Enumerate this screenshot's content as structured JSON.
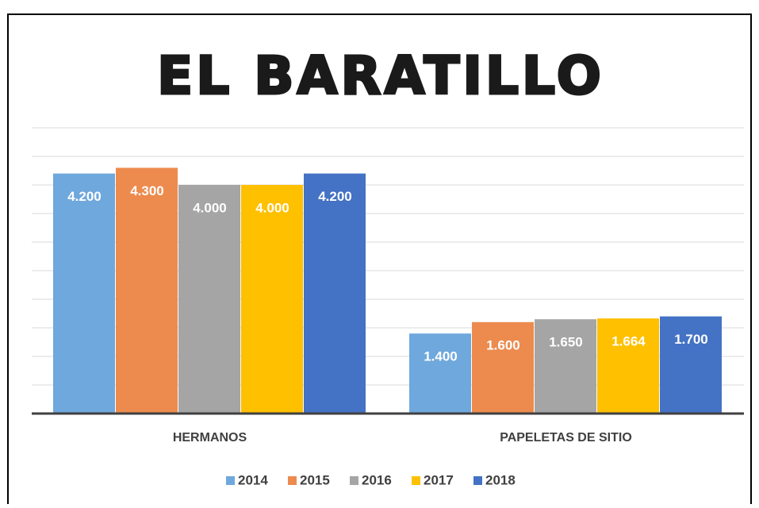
{
  "chart_data": {
    "type": "bar",
    "title": "EL BARATILLO",
    "categories": [
      "HERMANOS",
      "PAPELETAS DE SITIO"
    ],
    "series": [
      {
        "name": "2014",
        "color": "#6fa8dc",
        "values": [
          4200,
          1400
        ],
        "value_labels": [
          "4.200",
          "1.400"
        ]
      },
      {
        "name": "2015",
        "color": "#ed8b4e",
        "values": [
          4300,
          1600
        ],
        "value_labels": [
          "4.300",
          "1.600"
        ]
      },
      {
        "name": "2016",
        "color": "#a5a5a5",
        "values": [
          4000,
          1650
        ],
        "value_labels": [
          "4.000",
          "1.650"
        ]
      },
      {
        "name": "2017",
        "color": "#ffc000",
        "values": [
          4000,
          1664
        ],
        "value_labels": [
          "4.000",
          "1.664"
        ]
      },
      {
        "name": "2018",
        "color": "#4472c4",
        "values": [
          4200,
          1700
        ],
        "value_labels": [
          "4.200",
          "1.700"
        ]
      }
    ],
    "ylim": [
      0,
      5000
    ],
    "yticks": [
      0,
      500,
      1000,
      1500,
      2000,
      2500,
      3000,
      3500,
      4000,
      4500,
      5000
    ],
    "grid": true,
    "legend": "bottom"
  }
}
